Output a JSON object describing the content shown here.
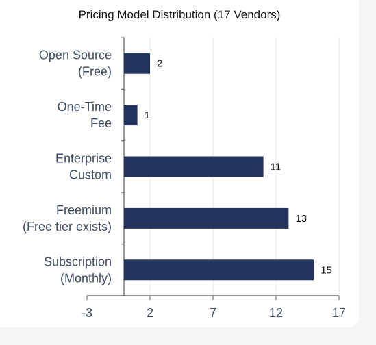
{
  "chart_data": {
    "type": "bar",
    "orientation": "horizontal",
    "title": "Pricing Model Distribution (17 Vendors)",
    "categories": [
      [
        "Open Source",
        "(Free)"
      ],
      [
        "One-Time",
        "Fee"
      ],
      [
        "Enterprise",
        "Custom"
      ],
      [
        "Freemium",
        "(Free tier exists)"
      ],
      [
        "Subscription",
        "(Monthly)"
      ]
    ],
    "values": [
      2,
      1,
      11,
      13,
      15
    ],
    "xlim": [
      -3,
      17
    ],
    "xticks": [
      "-3",
      "2",
      "7",
      "12",
      "17"
    ],
    "grid": "vertical",
    "bar_color": "#24335e",
    "show_data_labels": true
  }
}
